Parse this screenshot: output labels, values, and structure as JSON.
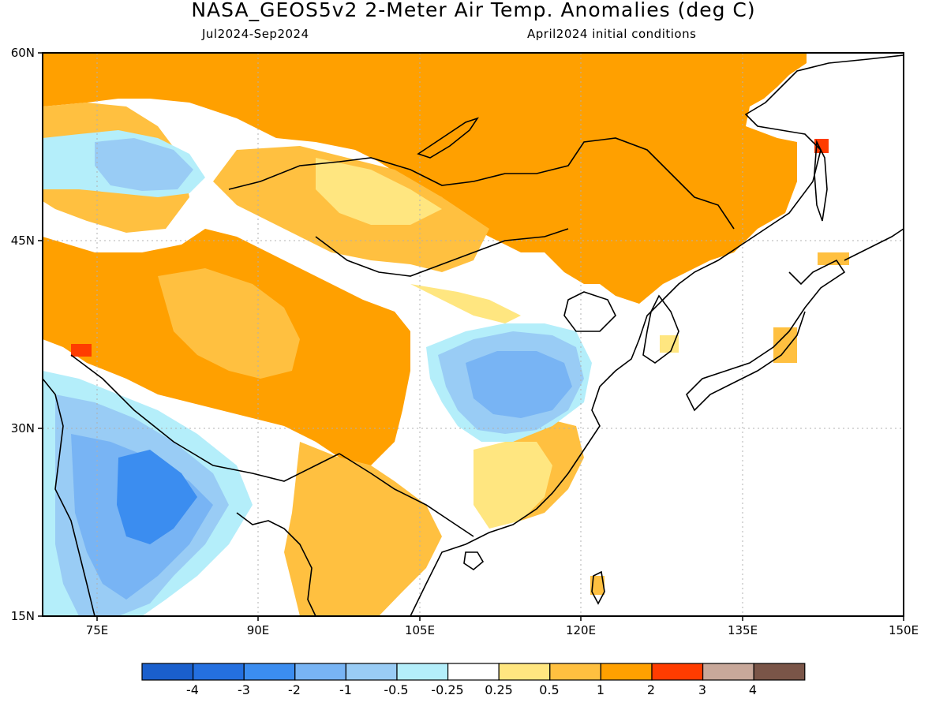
{
  "header": {
    "title": "NASA_GEOS5v2 2-Meter Air Temp. Anomalies (deg C)",
    "period": "Jul2024-Sep2024",
    "init": "April2024 initial conditions"
  },
  "axes": {
    "lat_labels": [
      "60N",
      "45N",
      "30N",
      "15N"
    ],
    "lon_labels": [
      "75E",
      "90E",
      "105E",
      "120E",
      "135E",
      "150E"
    ]
  },
  "colorbar": {
    "labels": [
      "-4",
      "-3",
      "-2",
      "-1",
      "-0.5",
      "-0.25",
      "0.25",
      "0.5",
      "1",
      "2",
      "3",
      "4"
    ],
    "colors": [
      "#1a5fcc",
      "#2470e0",
      "#3b8df0",
      "#78b4f4",
      "#99ccf5",
      "#b4eefa",
      "#ffffff",
      "#ffe680",
      "#ffc040",
      "#ffa000",
      "#ff3c00",
      "#c8a89a",
      "#7a5548"
    ]
  },
  "map": {
    "lon_range": [
      70,
      150
    ],
    "lat_range": [
      15,
      60
    ],
    "gridlines": true,
    "colors": {
      "strong_warm": "#ffa000",
      "warm": "#ffc040",
      "slight_warm": "#ffe680",
      "neutral": "#ffffff",
      "slight_cool": "#b4eefa",
      "cool": "#99ccf5",
      "cooler": "#78b4f4",
      "cold": "#3b8df0",
      "hot": "#ff3c00"
    }
  }
}
